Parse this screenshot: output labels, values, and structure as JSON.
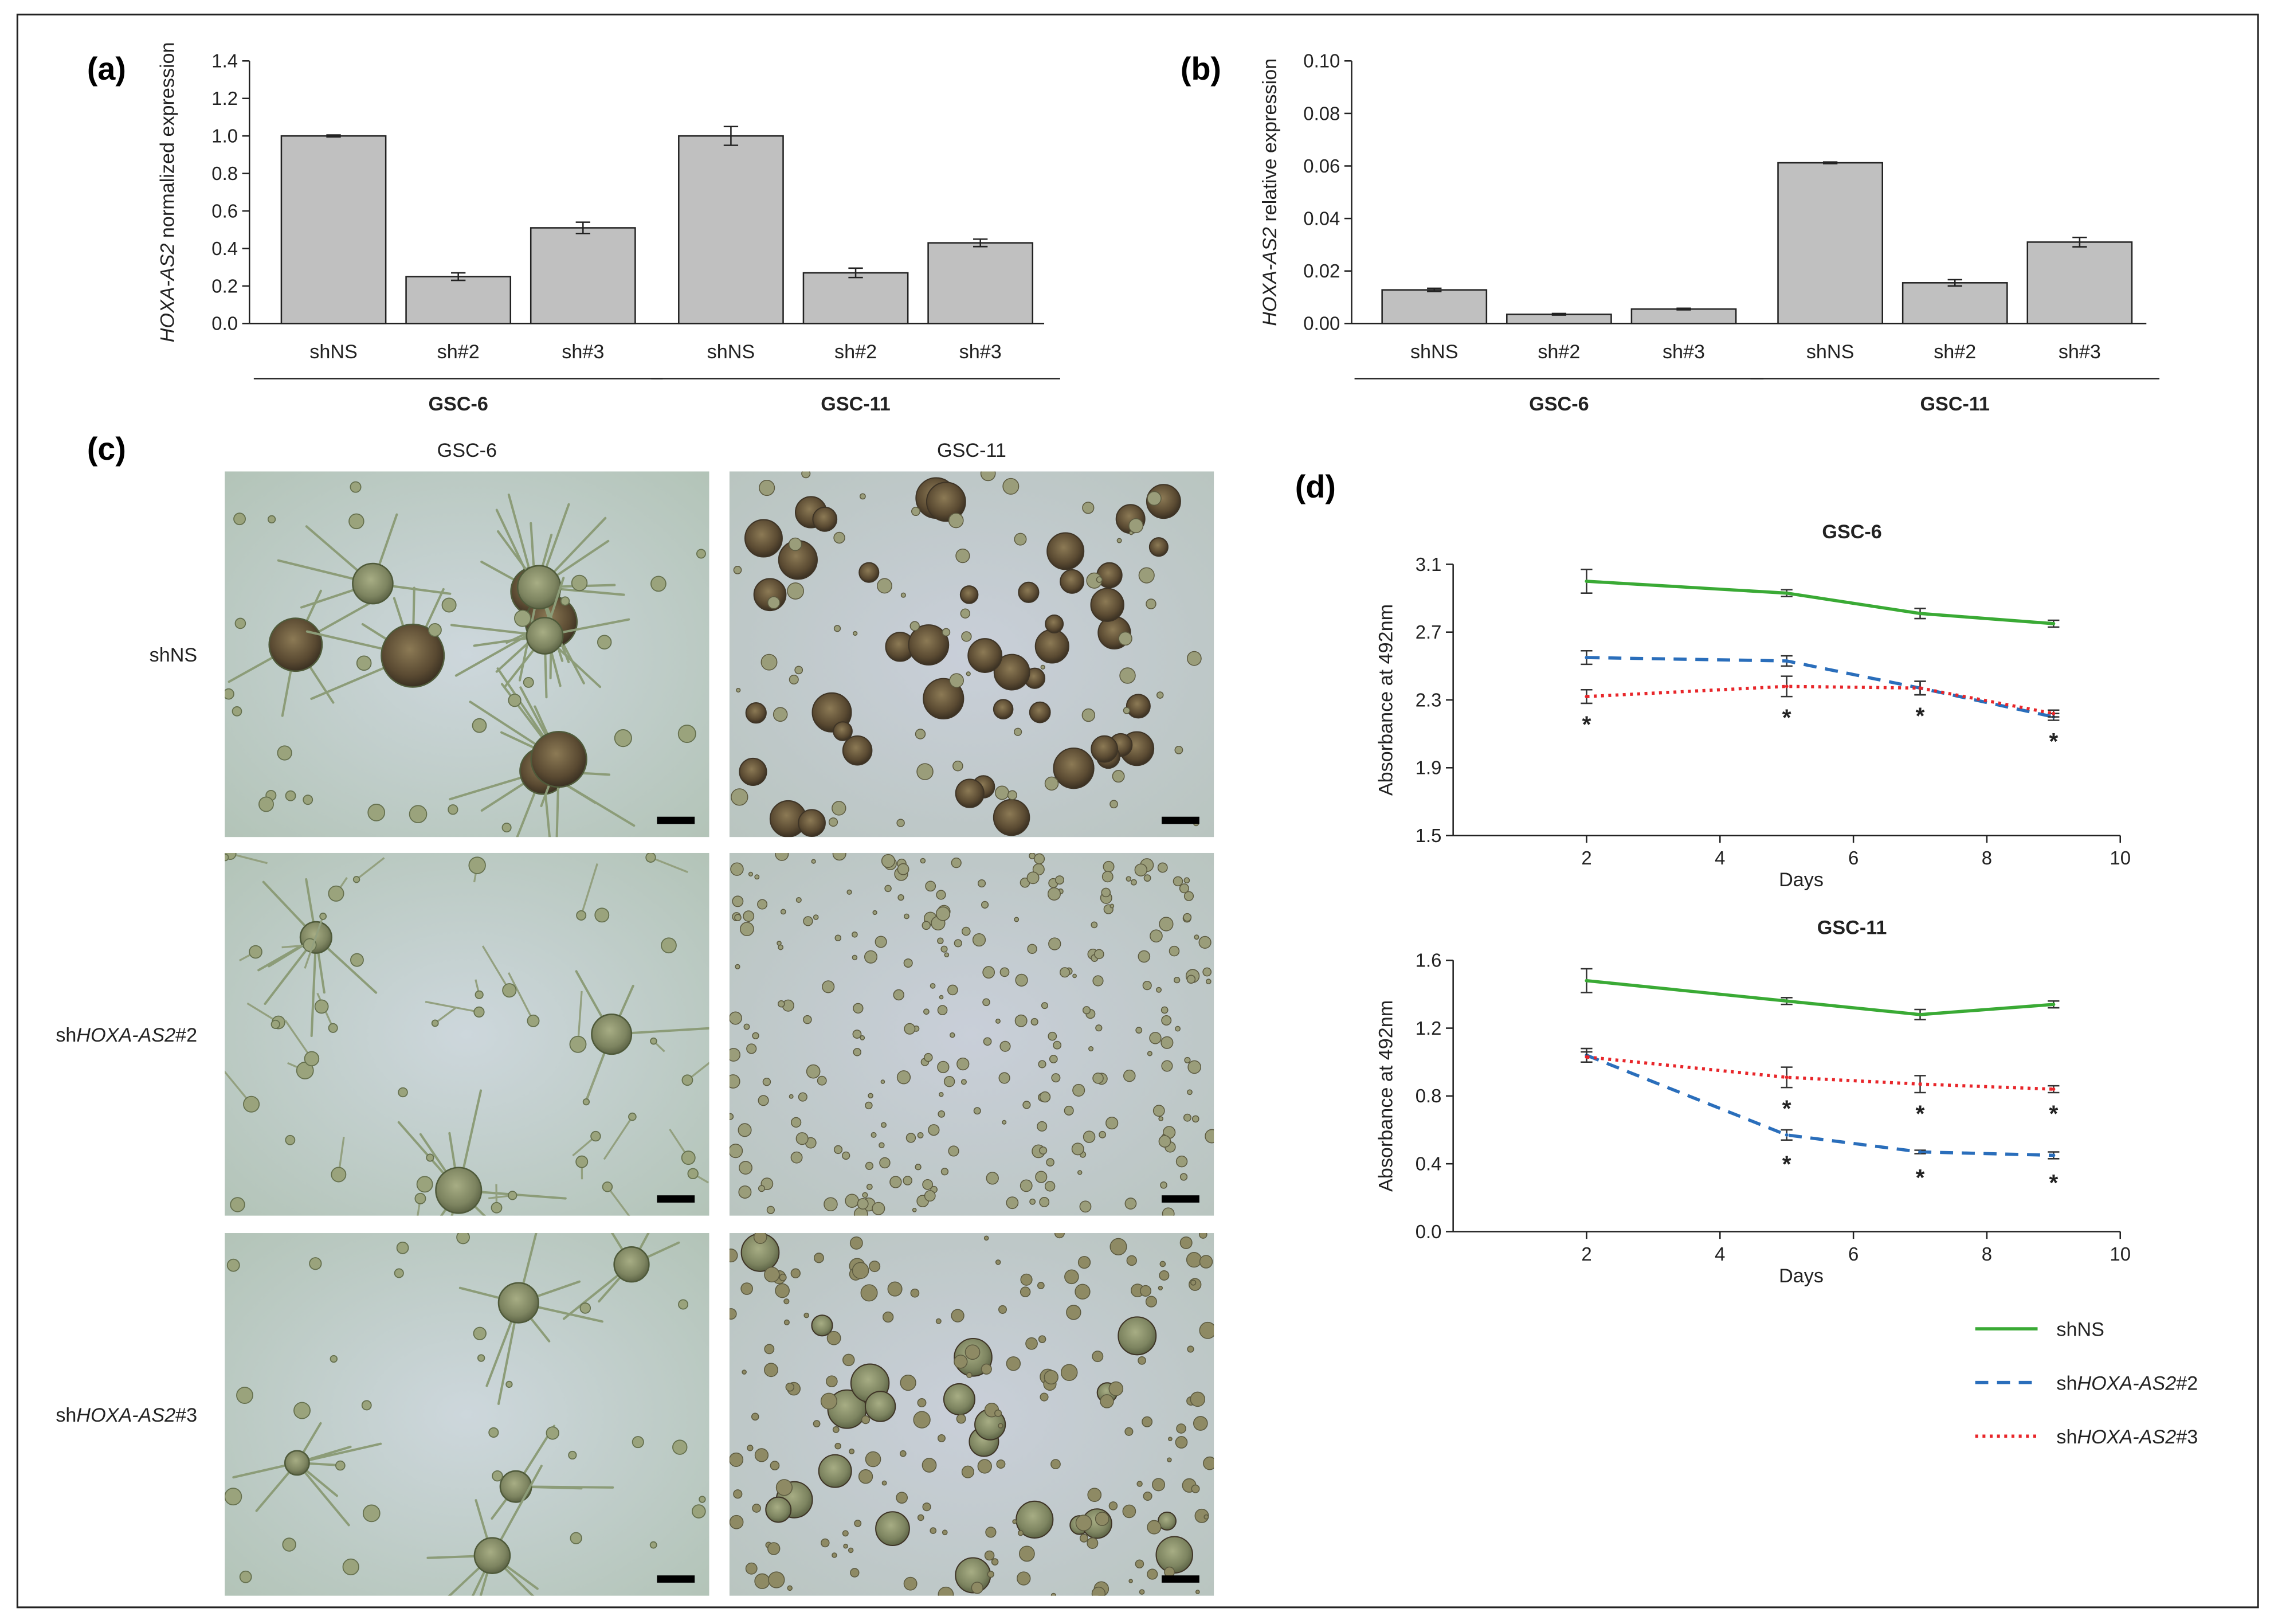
{
  "panels": {
    "a": "(a)",
    "b": "(b)",
    "c": "(c)",
    "d": "(d)"
  },
  "chart_data": [
    {
      "id": "a",
      "type": "bar",
      "ylabel_italic": "HOXA-AS2",
      "ylabel_rest": " normalized expression",
      "ylim": [
        0,
        1.4
      ],
      "yticks": [
        "0.0",
        "0.2",
        "0.4",
        "0.6",
        "0.8",
        "1.0",
        "1.2",
        "1.4"
      ],
      "groups": [
        {
          "name": "GSC-6",
          "categories": [
            "shNS",
            "sh#2",
            "sh#3"
          ],
          "values": [
            1.0,
            0.25,
            0.51
          ],
          "errors": [
            0.005,
            0.02,
            0.03
          ]
        },
        {
          "name": "GSC-11",
          "categories": [
            "shNS",
            "sh#2",
            "sh#3"
          ],
          "values": [
            1.0,
            0.27,
            0.43
          ],
          "errors": [
            0.05,
            0.025,
            0.02
          ]
        }
      ],
      "bar_color": "#c0c0c0"
    },
    {
      "id": "b",
      "type": "bar",
      "ylabel_italic": "HOXA-AS2",
      "ylabel_rest": " relative expression",
      "ylim": [
        0,
        0.1
      ],
      "yticks": [
        "0.00",
        "0.02",
        "0.04",
        "0.06",
        "0.08",
        "0.10"
      ],
      "groups": [
        {
          "name": "GSC-6",
          "categories": [
            "shNS",
            "sh#2",
            "sh#3"
          ],
          "values": [
            0.0128,
            0.0035,
            0.0055
          ],
          "errors": [
            0.0006,
            0.0003,
            0.0003
          ]
        },
        {
          "name": "GSC-11",
          "categories": [
            "shNS",
            "sh#2",
            "sh#3"
          ],
          "values": [
            0.0612,
            0.0155,
            0.031
          ],
          "errors": [
            0.0003,
            0.0012,
            0.0018
          ]
        }
      ],
      "bar_color": "#c0c0c0"
    },
    {
      "id": "d1",
      "type": "line",
      "title": "GSC-6",
      "xlabel": "Days",
      "ylabel": "Absorbance at 492nm",
      "xlim": [
        0,
        10
      ],
      "ylim": [
        1.5,
        3.1
      ],
      "xticks": [
        2,
        4,
        6,
        8,
        10
      ],
      "yticks": [
        "1.5",
        "1.9",
        "2.3",
        "2.7",
        "3.1"
      ],
      "x": [
        2,
        5,
        7,
        9
      ],
      "series": [
        {
          "name": "shNS",
          "values": [
            3.0,
            2.93,
            2.81,
            2.75
          ],
          "errors": [
            0.07,
            0.02,
            0.03,
            0.02
          ],
          "color": "#3aaa35",
          "dash": "solid"
        },
        {
          "name": "shHOXA-AS2#2",
          "values": [
            2.55,
            2.53,
            2.37,
            2.2
          ],
          "errors": [
            0.04,
            0.03,
            0.04,
            0.02
          ],
          "color": "#2a6ebb",
          "dash": "dashed"
        },
        {
          "name": "shHOXA-AS2#3",
          "values": [
            2.32,
            2.38,
            2.37,
            2.22
          ],
          "errors": [
            0.04,
            0.06,
            0.04,
            0.02
          ],
          "color": "#e8262a",
          "dash": "dotted"
        }
      ],
      "stars": [
        2,
        5,
        7,
        9
      ]
    },
    {
      "id": "d2",
      "type": "line",
      "title": "GSC-11",
      "xlabel": "Days",
      "ylabel": "Absorbance at 492nm",
      "xlim": [
        0,
        10
      ],
      "ylim": [
        0.0,
        1.6
      ],
      "xticks": [
        2,
        4,
        6,
        8,
        10
      ],
      "yticks": [
        "0.0",
        "0.4",
        "0.8",
        "1.2",
        "1.6"
      ],
      "x": [
        2,
        5,
        7,
        9
      ],
      "series": [
        {
          "name": "shNS",
          "values": [
            1.48,
            1.36,
            1.28,
            1.34
          ],
          "errors": [
            0.07,
            0.02,
            0.03,
            0.02
          ],
          "color": "#3aaa35",
          "dash": "solid"
        },
        {
          "name": "shHOXA-AS2#2",
          "values": [
            1.04,
            0.57,
            0.47,
            0.45
          ],
          "errors": [
            0.04,
            0.03,
            0.01,
            0.02
          ],
          "color": "#2a6ebb",
          "dash": "dashed"
        },
        {
          "name": "shHOXA-AS2#3",
          "values": [
            1.03,
            0.91,
            0.87,
            0.84
          ],
          "errors": [
            0.03,
            0.06,
            0.05,
            0.02
          ],
          "color": "#e8262a",
          "dash": "dotted"
        }
      ],
      "stars_high": [
        5,
        7,
        9
      ],
      "stars_low": [
        5,
        7,
        9
      ]
    }
  ],
  "micrographs": {
    "col_labels": [
      "GSC-6",
      "GSC-11"
    ],
    "row_labels": [
      {
        "pre": "shNS",
        "ital": "",
        "post": ""
      },
      {
        "pre": "sh",
        "ital": "HOXA-AS2",
        "post": "#2"
      },
      {
        "pre": "sh",
        "ital": "HOXA-AS2",
        "post": "#3"
      }
    ]
  },
  "legend": [
    {
      "pre": "shNS",
      "ital": "",
      "post": "",
      "color": "#3aaa35",
      "dash": "solid"
    },
    {
      "pre": "sh",
      "ital": "HOXA-AS2",
      "post": "#2",
      "color": "#2a6ebb",
      "dash": "dashed"
    },
    {
      "pre": "sh",
      "ital": "HOXA-AS2",
      "post": "#3",
      "color": "#e8262a",
      "dash": "dotted"
    }
  ],
  "star_symbol": "*"
}
